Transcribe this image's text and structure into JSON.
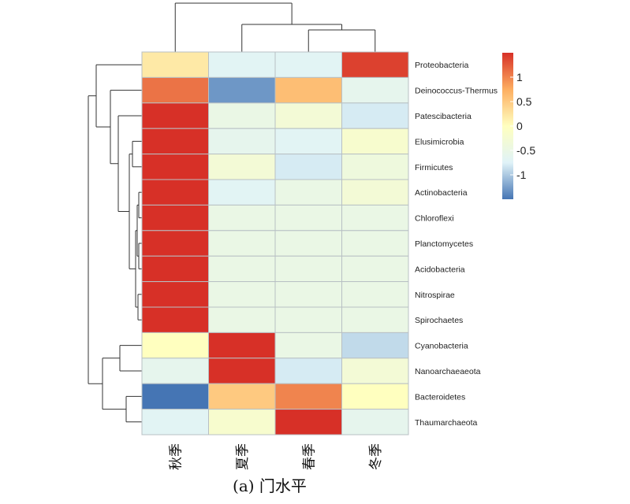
{
  "chart_data": {
    "type": "heatmap",
    "title": "",
    "columns": [
      "秋季",
      "夏季",
      "春季",
      "冬季"
    ],
    "rows": [
      "Proteobacteria",
      "Deinococcus-Thermus",
      "Patescibacteria",
      "Elusimicrobia",
      "Firmicutes",
      "Actinobacteria",
      "Chloroflexi",
      "Planctomycetes",
      "Acidobacteria",
      "Nitrospirae",
      "Spirochaetes",
      "Cyanobacteria",
      "Nanoarchaeaeota",
      "Bacteroidetes",
      "Thaumarchaeota"
    ],
    "values": [
      [
        0.2,
        -0.7,
        -0.7,
        1.4
      ],
      [
        1.1,
        -1.3,
        0.6,
        -0.6
      ],
      [
        1.5,
        -0.5,
        -0.3,
        -0.8
      ],
      [
        1.5,
        -0.6,
        -0.7,
        -0.2
      ],
      [
        1.5,
        -0.3,
        -0.8,
        -0.4
      ],
      [
        1.5,
        -0.7,
        -0.5,
        -0.3
      ],
      [
        1.5,
        -0.5,
        -0.5,
        -0.5
      ],
      [
        1.5,
        -0.5,
        -0.5,
        -0.5
      ],
      [
        1.5,
        -0.5,
        -0.5,
        -0.5
      ],
      [
        1.5,
        -0.5,
        -0.5,
        -0.5
      ],
      [
        1.5,
        -0.5,
        -0.5,
        -0.5
      ],
      [
        0.0,
        1.5,
        -0.5,
        -0.9
      ],
      [
        -0.6,
        1.5,
        -0.8,
        -0.3
      ],
      [
        -1.5,
        0.5,
        1.0,
        0.0
      ],
      [
        -0.7,
        -0.2,
        1.5,
        -0.6
      ]
    ],
    "legend": {
      "ticks": [
        1,
        0.5,
        0,
        -0.5,
        -1
      ],
      "tick_labels": [
        "1",
        "0.5",
        "0",
        "-0.5",
        "-1"
      ],
      "range": [
        -1.5,
        1.5
      ],
      "placement": "right",
      "colors": {
        "low": "#4575b4",
        "mid": "#ffffbf",
        "high": "#d73027",
        "low_mid": "#e0f3f8",
        "mid_high": "#fdae61"
      }
    },
    "row_dendrogram": true,
    "column_dendrogram": true,
    "grid": true
  },
  "caption": "(a) 门水平"
}
